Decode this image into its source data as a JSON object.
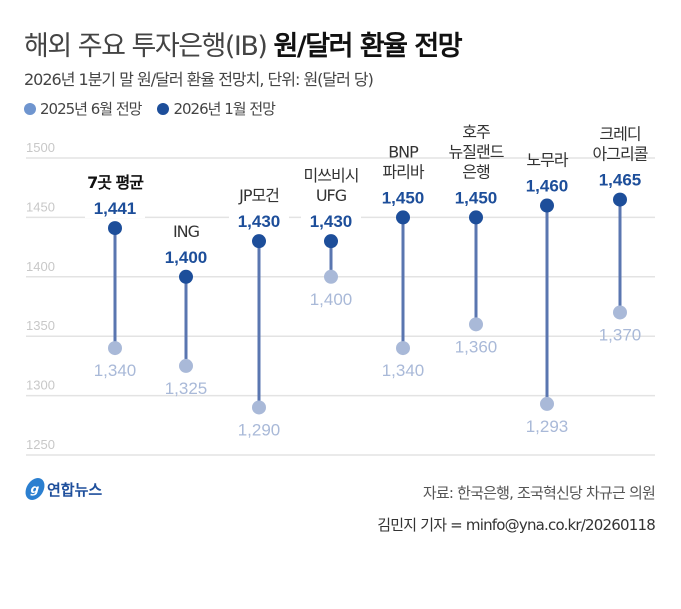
{
  "title_light": "해외 주요 투자은행(IB)",
  "title_bold": "원/달러 환율 전망",
  "subtitle": "2026년 1분기 말 원/달러 환율 전망치, 단위: 원(달러 당)",
  "source": "자료: 한국은행, 조국혁신당 차규근 의원",
  "credit": "김민지 기자 = minfo@yna.co.kr/20260118",
  "logo_text": "연합뉴스",
  "chart_data": {
    "type": "dumbbell",
    "ylim": [
      1250,
      1500
    ],
    "yticks": [
      1250,
      1300,
      1350,
      1400,
      1450,
      1500
    ],
    "grid": true,
    "legend_placement": "top-left",
    "categories": [
      [
        "7곳 평균"
      ],
      [
        "ING"
      ],
      [
        "JP모건"
      ],
      [
        "미쓰비시",
        "UFG"
      ],
      [
        "BNP",
        "파리바"
      ],
      [
        "호주",
        "뉴질랜드",
        "은행"
      ],
      [
        "노무라"
      ],
      [
        "크레디",
        "아그리콜"
      ]
    ],
    "series": [
      {
        "name": "2025년 6월 전망",
        "color": "#a9b9d8",
        "values": [
          1340,
          1325,
          1290,
          1400,
          1340,
          1360,
          1293,
          1370
        ],
        "labels": [
          "1,340",
          "1,325",
          "1,290",
          "1,400",
          "1,340",
          "1,360",
          "1,293",
          "1,370"
        ]
      },
      {
        "name": "2026년 1월 전망",
        "color": "#1d4e9a",
        "values": [
          1441,
          1400,
          1430,
          1430,
          1450,
          1450,
          1460,
          1465
        ],
        "labels": [
          "1,441",
          "1,400",
          "1,430",
          "1,430",
          "1,450",
          "1,450",
          "1,460",
          "1,465"
        ]
      }
    ],
    "legend_colors": [
      "#6f95cf",
      "#1d4e9a"
    ],
    "line_color": "#5a76b0"
  }
}
